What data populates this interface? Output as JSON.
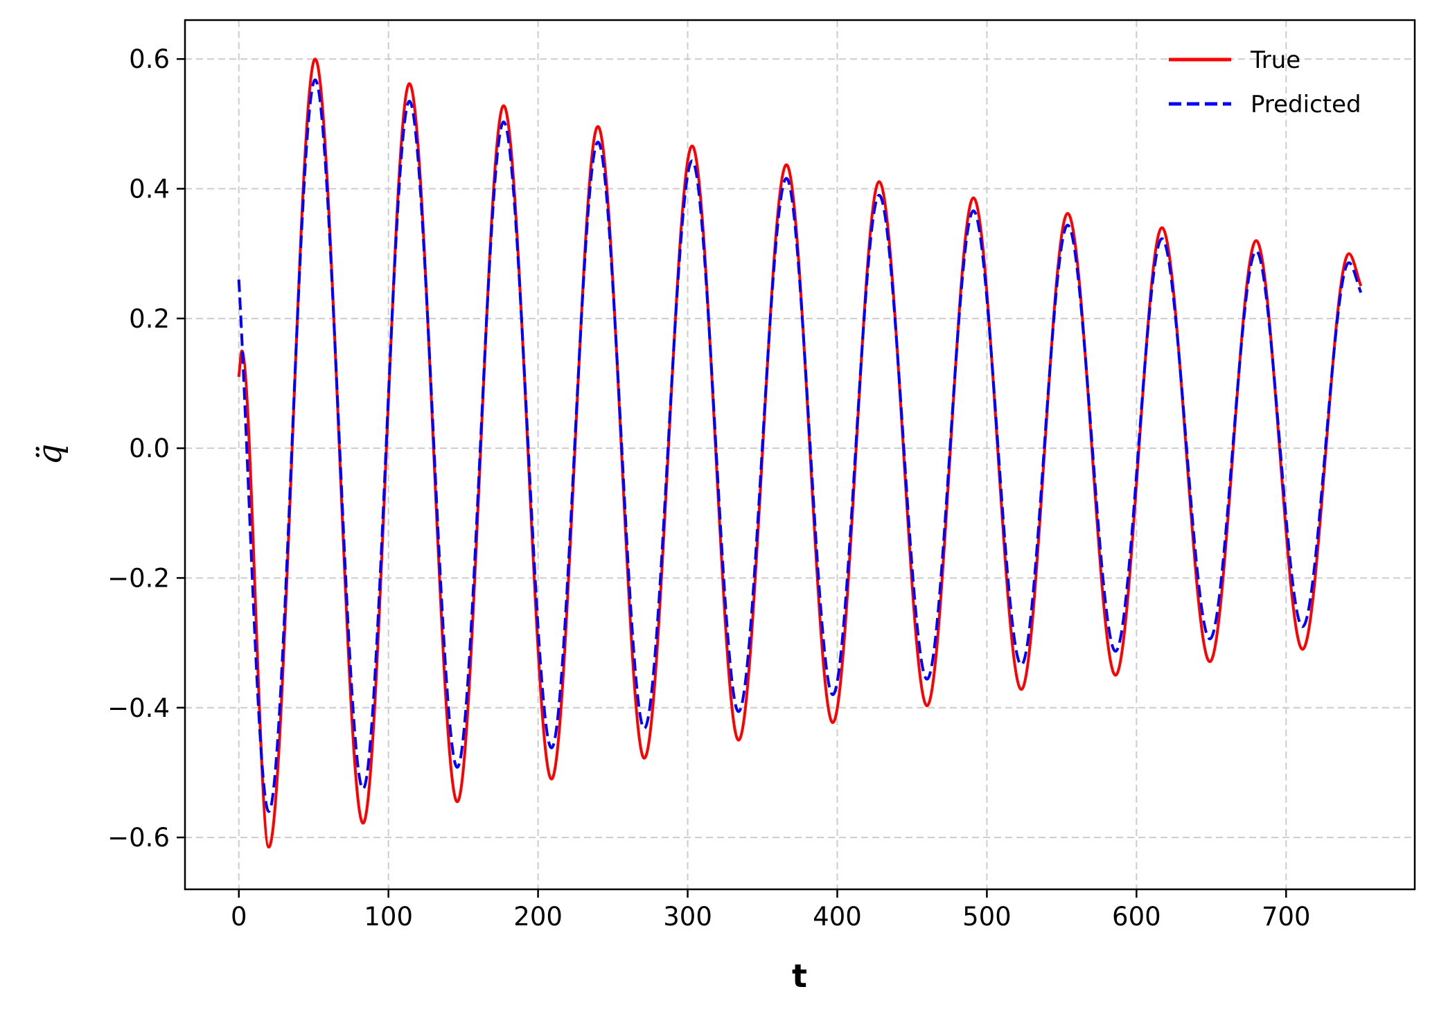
{
  "chart_data": {
    "type": "line",
    "xlabel": "t",
    "ylabel": "q̈",
    "xlim": [
      -36,
      786
    ],
    "ylim": [
      -0.68,
      0.66
    ],
    "xticks": [
      0,
      100,
      200,
      300,
      400,
      500,
      600,
      700
    ],
    "yticks": [
      0.6,
      0.4,
      0.2,
      0.0,
      -0.2,
      -0.4,
      -0.6
    ],
    "xtick_labels": [
      "0",
      "100",
      "200",
      "300",
      "400",
      "500",
      "600",
      "700"
    ],
    "ytick_labels": [
      "0.6",
      "0.4",
      "0.2",
      "0.0",
      "−0.2",
      "−0.4",
      "−0.6"
    ],
    "grid": true,
    "legend_position": "top-right",
    "series": [
      {
        "name": "True",
        "color": "#ff0000",
        "style": "solid",
        "points": [
          [
            0,
            0.11
          ],
          [
            2,
            0.15
          ],
          [
            20,
            -0.615
          ],
          [
            51,
            0.6
          ],
          [
            83,
            -0.578
          ],
          [
            114,
            0.562
          ],
          [
            146,
            -0.545
          ],
          [
            177,
            0.528
          ],
          [
            209,
            -0.51
          ],
          [
            240,
            0.496
          ],
          [
            271,
            -0.478
          ],
          [
            303,
            0.466
          ],
          [
            334,
            -0.45
          ],
          [
            366,
            0.437
          ],
          [
            397,
            -0.423
          ],
          [
            428,
            0.411
          ],
          [
            460,
            -0.397
          ],
          [
            491,
            0.386
          ],
          [
            523,
            -0.372
          ],
          [
            554,
            0.362
          ],
          [
            586,
            -0.35
          ],
          [
            617,
            0.34
          ],
          [
            649,
            -0.329
          ],
          [
            680,
            0.32
          ],
          [
            711,
            -0.31
          ],
          [
            742,
            0.3
          ],
          [
            750,
            0.25
          ]
        ]
      },
      {
        "name": "Predicted",
        "color": "#0000ff",
        "style": "dashed",
        "points": [
          [
            0,
            0.26
          ],
          [
            20,
            -0.56
          ],
          [
            51,
            0.568
          ],
          [
            83,
            -0.525
          ],
          [
            114,
            0.535
          ],
          [
            146,
            -0.492
          ],
          [
            177,
            0.503
          ],
          [
            209,
            -0.462
          ],
          [
            240,
            0.472
          ],
          [
            271,
            -0.432
          ],
          [
            303,
            0.443
          ],
          [
            334,
            -0.406
          ],
          [
            366,
            0.416
          ],
          [
            397,
            -0.38
          ],
          [
            428,
            0.39
          ],
          [
            460,
            -0.356
          ],
          [
            491,
            0.366
          ],
          [
            523,
            -0.334
          ],
          [
            554,
            0.344
          ],
          [
            586,
            -0.313
          ],
          [
            617,
            0.323
          ],
          [
            649,
            -0.294
          ],
          [
            680,
            0.304
          ],
          [
            711,
            -0.275
          ],
          [
            742,
            0.286
          ],
          [
            750,
            0.24
          ]
        ]
      }
    ]
  }
}
